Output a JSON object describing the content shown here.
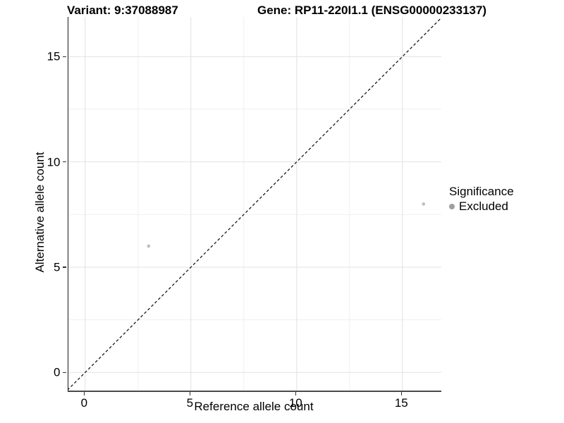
{
  "titles": {
    "left": "Variant: 9:37088987",
    "right": "Gene: RP11-220I1.1 (ENSG00000233137)"
  },
  "chart_data": {
    "type": "scatter",
    "xlabel": "Reference allele count",
    "ylabel": "Alternative allele count",
    "xlim": [
      -0.8,
      16.9
    ],
    "ylim": [
      -0.85,
      16.9
    ],
    "xticks": [
      0,
      5,
      10,
      15
    ],
    "yticks": [
      0,
      5,
      10,
      15
    ],
    "xminor": [
      2.5,
      7.5,
      12.5
    ],
    "yminor": [
      2.5,
      7.5,
      12.5
    ],
    "grid": "major+minor",
    "series": [
      {
        "name": "Excluded",
        "points": [
          [
            3,
            6
          ],
          [
            16,
            8
          ]
        ],
        "color": "#bdbdbd"
      }
    ],
    "reference_line": {
      "equation": "y=x",
      "style": "dashed",
      "color": "#1a1a1a"
    },
    "legend": {
      "position": "right",
      "title": "Significance",
      "items": [
        {
          "label": "Excluded",
          "color": "#9e9e9e"
        }
      ]
    },
    "colors": {
      "major_grid": "#e2e2e2",
      "minor_grid": "#efefef",
      "axis_line": "#1a1a1a",
      "point": "#bdbdbd"
    }
  }
}
